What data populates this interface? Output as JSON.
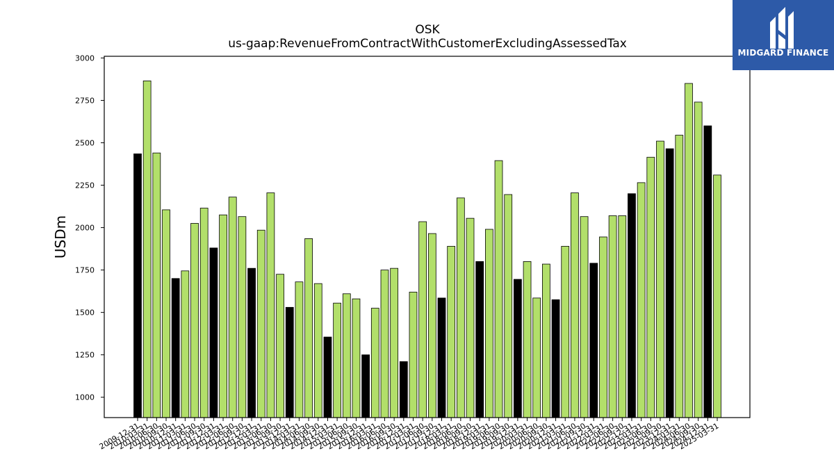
{
  "logo": {
    "text": "MIDGARD FINANCE",
    "color": "#2d5aa8"
  },
  "chart_data": {
    "type": "bar",
    "title": "OSK",
    "subtitle": "us-gaap:RevenueFromContractWithCustomerExcludingAssessedTax",
    "xlabel": "",
    "ylabel": "USDm",
    "ylim": [
      880,
      3010
    ],
    "yticks": [
      1000,
      1250,
      1500,
      1750,
      2000,
      2250,
      2500,
      2750,
      3000
    ],
    "grid": false,
    "legend": "none",
    "colors": {
      "annual": "#000000",
      "quarterly": "#b2df6a",
      "edge": "#000000"
    },
    "categories": [
      "2009-12-31",
      "2010-03-31",
      "2010-06-30",
      "2010-09-30",
      "2010-12-31",
      "2011-03-31",
      "2011-06-30",
      "2011-09-30",
      "2011-12-31",
      "2012-03-31",
      "2012-06-30",
      "2012-09-30",
      "2012-12-31",
      "2013-03-31",
      "2013-06-30",
      "2013-09-30",
      "2013-12-31",
      "2014-03-31",
      "2014-06-30",
      "2014-09-30",
      "2014-12-31",
      "2015-03-31",
      "2015-06-30",
      "2015-09-30",
      "2015-12-31",
      "2016-03-31",
      "2016-06-30",
      "2016-09-30",
      "2016-12-31",
      "2017-03-31",
      "2017-06-30",
      "2017-09-30",
      "2017-12-31",
      "2018-03-31",
      "2018-06-30",
      "2018-09-30",
      "2018-12-31",
      "2019-03-31",
      "2019-06-30",
      "2019-09-30",
      "2019-12-31",
      "2020-03-31",
      "2020-06-30",
      "2020-09-30",
      "2020-12-31",
      "2021-03-31",
      "2021-06-30",
      "2021-09-30",
      "2021-12-31",
      "2022-03-31",
      "2022-06-30",
      "2022-09-30",
      "2022-12-31",
      "2023-03-31",
      "2023-06-30",
      "2023-09-30",
      "2023-12-31",
      "2024-03-31",
      "2024-06-30",
      "2024-09-30",
      "2024-12-31",
      "2025-03-31"
    ],
    "values": [
      2435,
      2865,
      2440,
      2105,
      1700,
      1745,
      2025,
      2115,
      1880,
      2075,
      2180,
      2065,
      1760,
      1985,
      2205,
      1725,
      1530,
      1680,
      1935,
      1670,
      1355,
      1555,
      1610,
      1580,
      1250,
      1525,
      1750,
      1760,
      1210,
      1620,
      2035,
      1965,
      1585,
      1890,
      2175,
      2055,
      1800,
      1990,
      2395,
      2195,
      1695,
      1800,
      1585,
      1785,
      1575,
      1890,
      2205,
      2065,
      1790,
      1945,
      2070,
      2070,
      2200,
      2265,
      2415,
      2510,
      2465,
      2545,
      2850,
      2740,
      2600,
      2310
    ],
    "kinds": [
      "annual",
      "quarterly",
      "quarterly",
      "quarterly",
      "annual",
      "quarterly",
      "quarterly",
      "quarterly",
      "annual",
      "quarterly",
      "quarterly",
      "quarterly",
      "annual",
      "quarterly",
      "quarterly",
      "quarterly",
      "annual",
      "quarterly",
      "quarterly",
      "quarterly",
      "annual",
      "quarterly",
      "quarterly",
      "quarterly",
      "annual",
      "quarterly",
      "quarterly",
      "quarterly",
      "annual",
      "quarterly",
      "quarterly",
      "quarterly",
      "annual",
      "quarterly",
      "quarterly",
      "quarterly",
      "annual",
      "quarterly",
      "quarterly",
      "quarterly",
      "annual",
      "quarterly",
      "quarterly",
      "quarterly",
      "annual",
      "quarterly",
      "quarterly",
      "quarterly",
      "annual",
      "quarterly",
      "quarterly",
      "quarterly",
      "annual",
      "quarterly",
      "quarterly",
      "quarterly",
      "annual",
      "quarterly",
      "quarterly",
      "quarterly",
      "annual",
      "quarterly"
    ]
  }
}
